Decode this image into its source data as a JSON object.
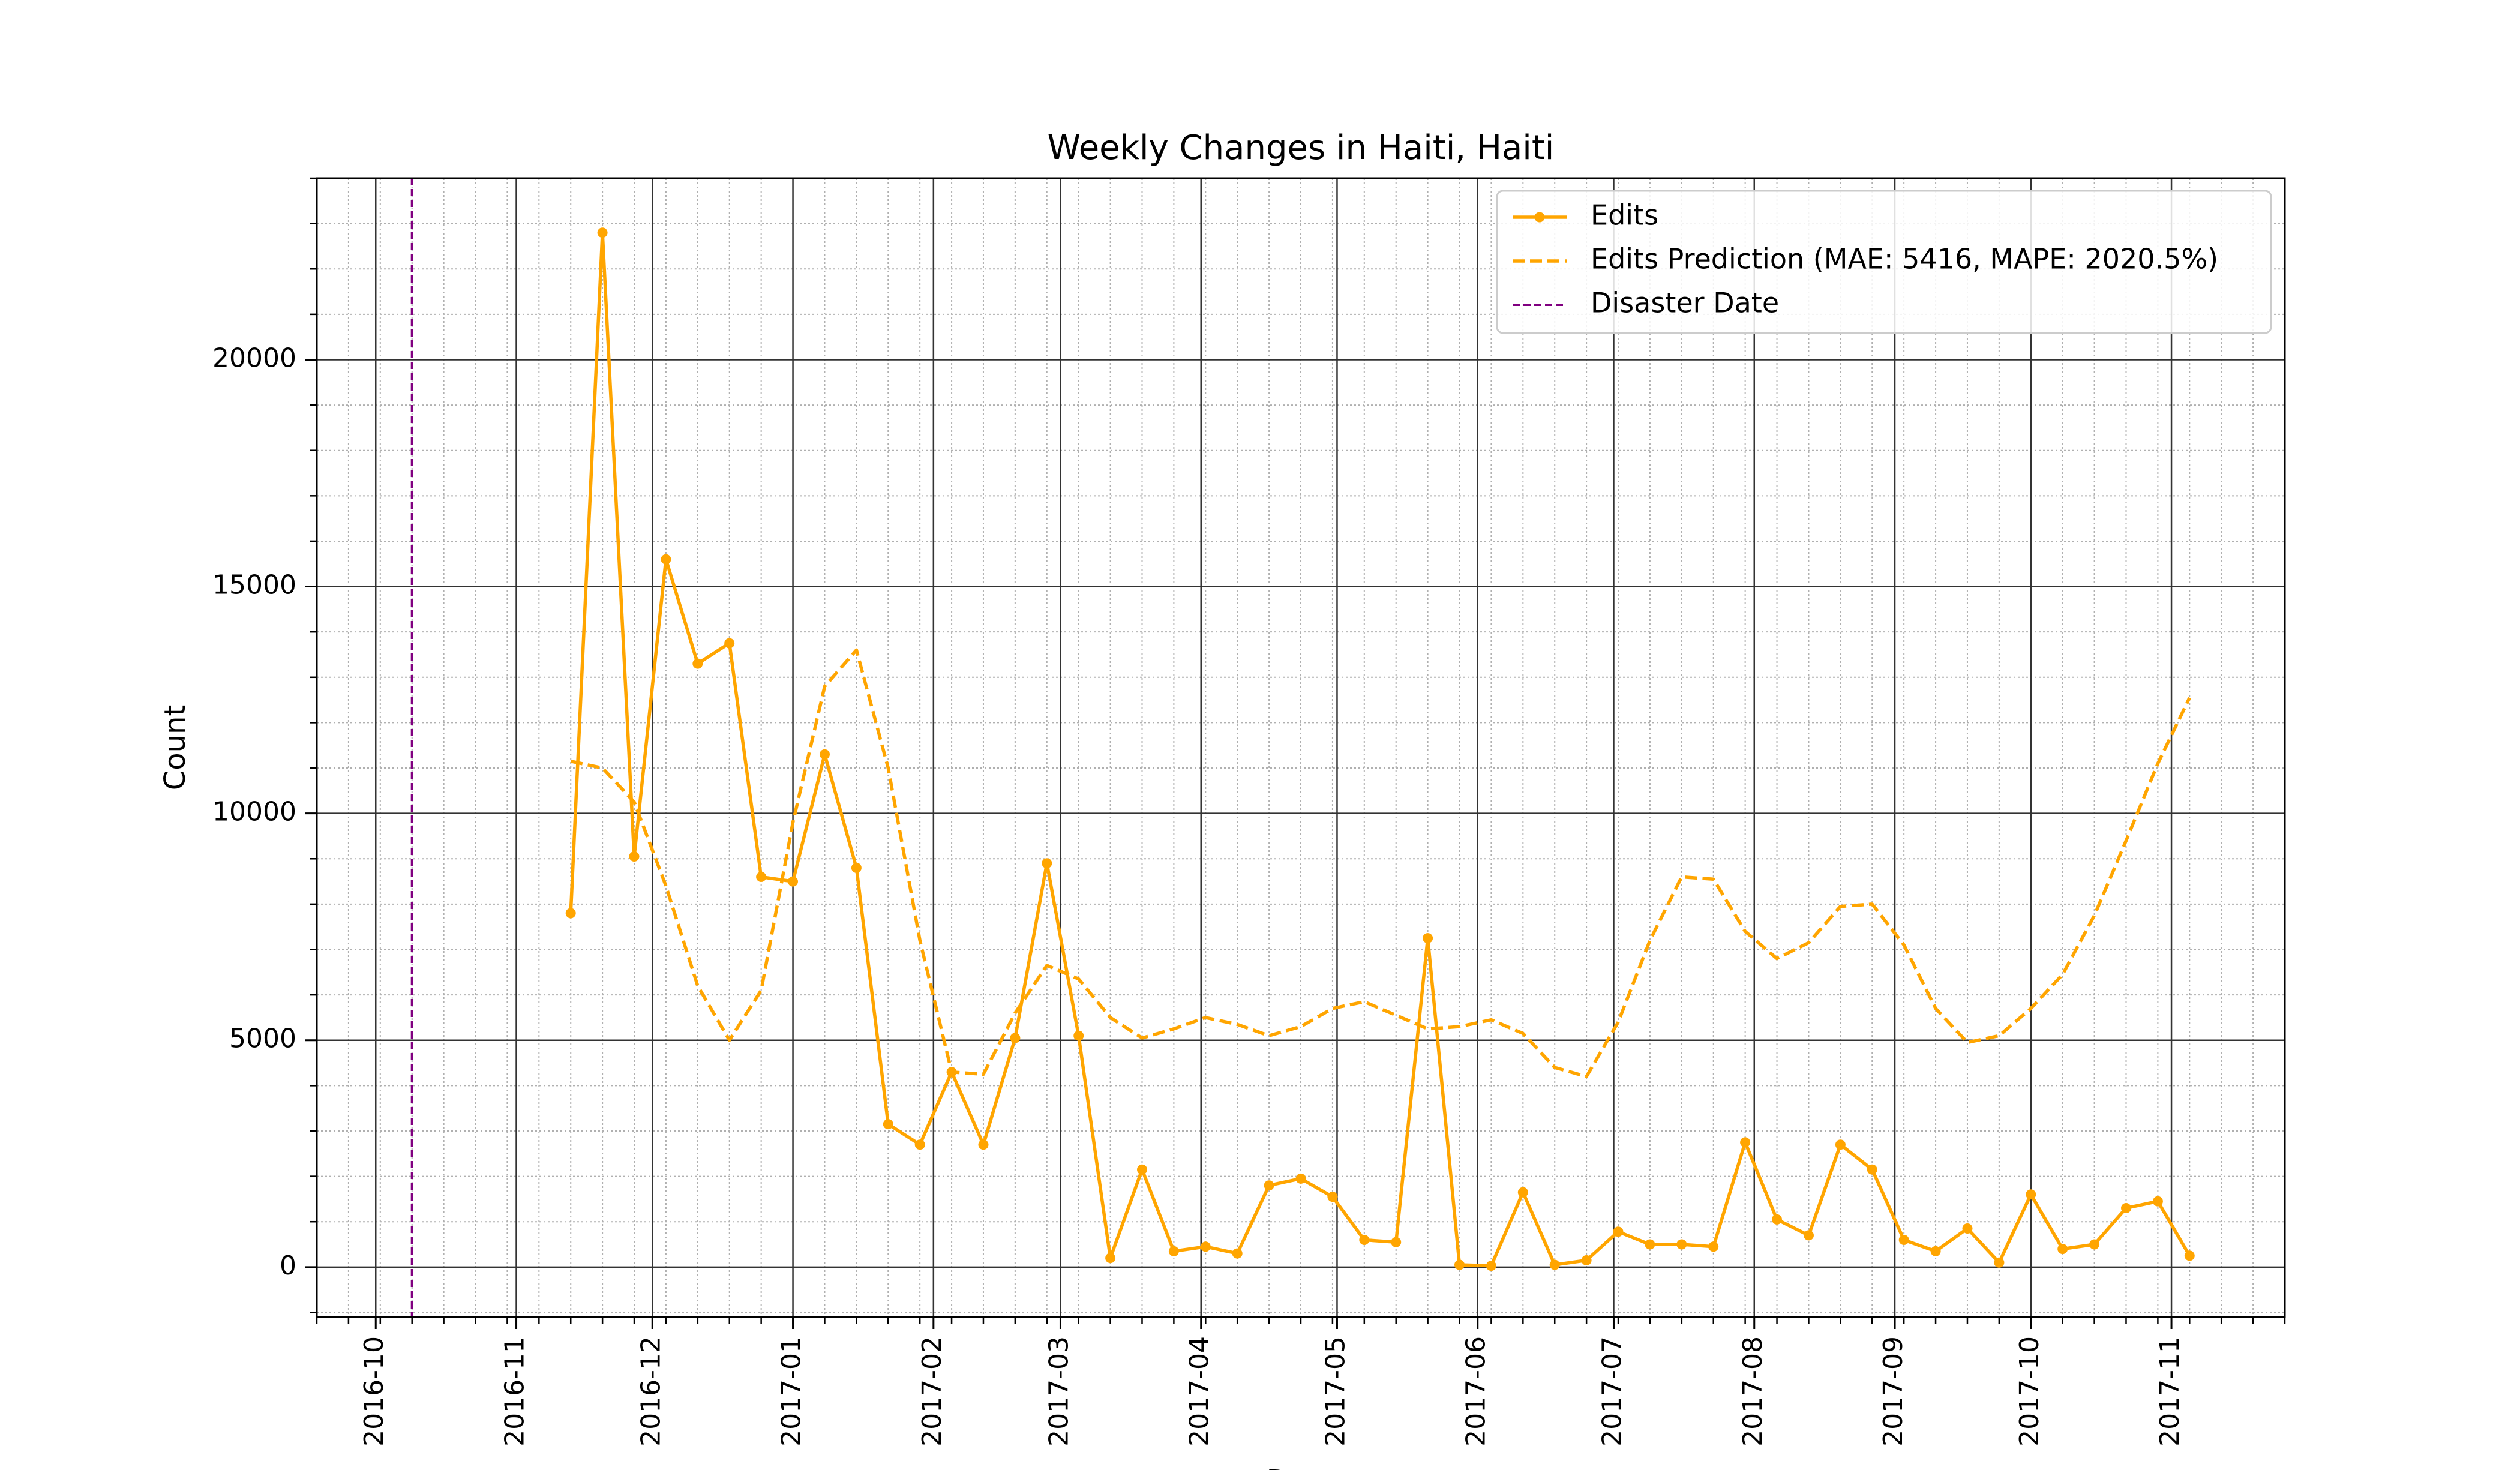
{
  "chart_data": {
    "type": "line",
    "title": "Weekly Changes in Haiti, Haiti",
    "xlabel": "Date",
    "ylabel": "Count",
    "xlim": [
      "2016-09-18",
      "2017-11-26"
    ],
    "ylim": [
      -1100,
      24000
    ],
    "x_tick_labels": [
      "2016-10",
      "2016-11",
      "2016-12",
      "2017-01",
      "2017-02",
      "2017-03",
      "2017-04",
      "2017-05",
      "2017-06",
      "2017-07",
      "2017-08",
      "2017-09",
      "2017-10",
      "2017-11"
    ],
    "y_ticks": [
      0,
      5000,
      10000,
      15000,
      20000
    ],
    "y_tick_labels": [
      "0",
      "5000",
      "10000",
      "15000",
      "20000"
    ],
    "grid": {
      "major": true,
      "minor": true
    },
    "legend_position": "top-right",
    "disaster_date": "2016-10-09",
    "series": [
      {
        "name": "Edits",
        "color": "#FFA500",
        "style": "solid-markers",
        "x": [
          "2016-11-13",
          "2016-11-20",
          "2016-11-27",
          "2016-12-04",
          "2016-12-11",
          "2016-12-18",
          "2016-12-25",
          "2017-01-01",
          "2017-01-08",
          "2017-01-15",
          "2017-01-22",
          "2017-01-29",
          "2017-02-05",
          "2017-02-12",
          "2017-02-19",
          "2017-02-26",
          "2017-03-05",
          "2017-03-12",
          "2017-03-19",
          "2017-03-26",
          "2017-04-02",
          "2017-04-09",
          "2017-04-16",
          "2017-04-23",
          "2017-04-30",
          "2017-05-07",
          "2017-05-14",
          "2017-05-21",
          "2017-05-28",
          "2017-06-04",
          "2017-06-11",
          "2017-06-18",
          "2017-06-25",
          "2017-07-02",
          "2017-07-09",
          "2017-07-16",
          "2017-07-23",
          "2017-07-30",
          "2017-08-06",
          "2017-08-13",
          "2017-08-20",
          "2017-08-27",
          "2017-09-03",
          "2017-09-10",
          "2017-09-17",
          "2017-09-24",
          "2017-10-01",
          "2017-10-08",
          "2017-10-15",
          "2017-10-22",
          "2017-10-29",
          "2017-11-05"
        ],
        "values": [
          7800,
          22800,
          9050,
          15600,
          13300,
          13750,
          8600,
          8500,
          11300,
          8800,
          3150,
          2700,
          4300,
          2700,
          5050,
          8900,
          5100,
          200,
          2150,
          350,
          450,
          300,
          1800,
          1950,
          1550,
          600,
          550,
          7250,
          50,
          30,
          1650,
          50,
          150,
          780,
          500,
          500,
          450,
          2750,
          1050,
          700,
          2700,
          2150,
          600,
          350,
          850,
          100,
          1600,
          400,
          500,
          1300,
          1450,
          250
        ]
      },
      {
        "name": "Edits Prediction (MAE: 5416, MAPE: 2020.5%)",
        "color": "#FFA500",
        "style": "dashed",
        "x": [
          "2016-11-13",
          "2016-11-20",
          "2016-11-27",
          "2016-12-04",
          "2016-12-11",
          "2016-12-18",
          "2016-12-25",
          "2017-01-01",
          "2017-01-08",
          "2017-01-15",
          "2017-01-22",
          "2017-01-29",
          "2017-02-05",
          "2017-02-12",
          "2017-02-19",
          "2017-02-26",
          "2017-03-05",
          "2017-03-12",
          "2017-03-19",
          "2017-03-26",
          "2017-04-02",
          "2017-04-09",
          "2017-04-16",
          "2017-04-23",
          "2017-04-30",
          "2017-05-07",
          "2017-05-14",
          "2017-05-21",
          "2017-05-28",
          "2017-06-04",
          "2017-06-11",
          "2017-06-18",
          "2017-06-25",
          "2017-07-02",
          "2017-07-09",
          "2017-07-16",
          "2017-07-23",
          "2017-07-30",
          "2017-08-06",
          "2017-08-13",
          "2017-08-20",
          "2017-08-27",
          "2017-09-03",
          "2017-09-10",
          "2017-09-17",
          "2017-09-24",
          "2017-10-01",
          "2017-10-08",
          "2017-10-15",
          "2017-10-22",
          "2017-10-29",
          "2017-11-05"
        ],
        "values": [
          11150,
          11000,
          10250,
          8400,
          6200,
          5000,
          6100,
          9800,
          12800,
          13600,
          11000,
          7200,
          4300,
          4250,
          5600,
          6650,
          6350,
          5500,
          5050,
          5250,
          5500,
          5350,
          5100,
          5300,
          5700,
          5850,
          5550,
          5250,
          5300,
          5450,
          5150,
          4400,
          4200,
          5400,
          7200,
          8600,
          8550,
          7400,
          6800,
          7150,
          7950,
          8000,
          7100,
          5700,
          4950,
          5100,
          5700,
          6450,
          7750,
          9400,
          11100,
          12550
        ]
      }
    ],
    "vlines": [
      {
        "name": "Disaster Date",
        "x": "2016-10-09",
        "color": "#800080",
        "style": "dashed"
      }
    ]
  }
}
